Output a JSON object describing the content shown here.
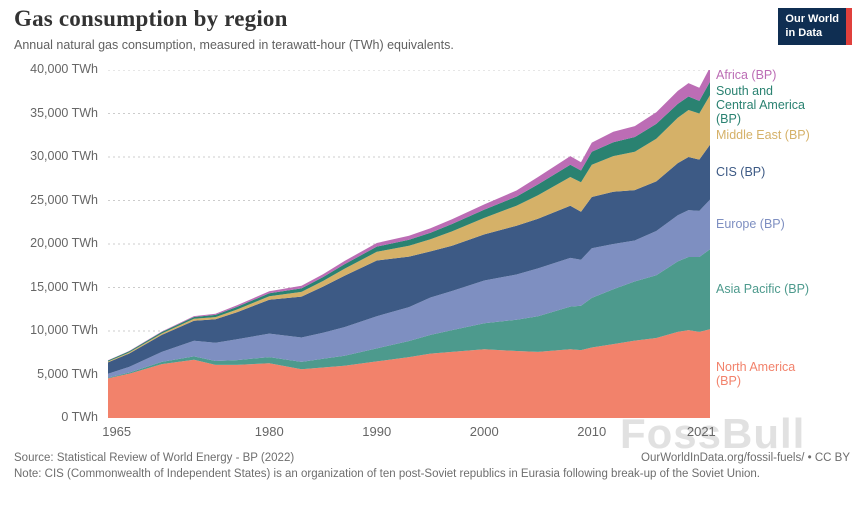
{
  "header": {
    "title": "Gas consumption by region",
    "subtitle": "Annual natural gas consumption, measured in terawatt-hour (TWh) equivalents.",
    "logo": {
      "line1": "Our World",
      "line2": "in Data",
      "bg": "#0F2E52",
      "accent": "#E0403C"
    }
  },
  "chart_data": {
    "type": "area",
    "stacked": true,
    "title": "Gas consumption by region",
    "xlabel": "",
    "ylabel": "TWh",
    "ylim": [
      0,
      40000
    ],
    "grid": "dotted-horizontal",
    "legend_position": "right",
    "x": [
      1965,
      1967,
      1970,
      1973,
      1975,
      1977,
      1980,
      1983,
      1985,
      1987,
      1990,
      1993,
      1995,
      1997,
      2000,
      2003,
      2005,
      2008,
      2009,
      2010,
      2012,
      2014,
      2016,
      2018,
      2019,
      2020,
      2021
    ],
    "series": [
      {
        "name": "North America (BP)",
        "color": "#F2826B",
        "values": [
          4550,
          5100,
          6200,
          6700,
          6100,
          6100,
          6300,
          5600,
          5800,
          6000,
          6500,
          7000,
          7400,
          7600,
          7900,
          7700,
          7600,
          7900,
          7800,
          8100,
          8500,
          8900,
          9200,
          9900,
          10100,
          9900,
          10200
        ]
      },
      {
        "name": "Asia Pacific (BP)",
        "color": "#4D9A8D",
        "values": [
          90,
          130,
          250,
          380,
          450,
          550,
          700,
          850,
          1000,
          1150,
          1500,
          1850,
          2150,
          2500,
          3000,
          3600,
          4100,
          4900,
          5100,
          5700,
          6300,
          6800,
          7200,
          8100,
          8400,
          8600,
          9200
        ]
      },
      {
        "name": "Europe (BP)",
        "color": "#7E8FC1",
        "values": [
          450,
          650,
          1150,
          1800,
          2100,
          2400,
          2700,
          2800,
          3000,
          3300,
          3700,
          3900,
          4300,
          4500,
          4900,
          5200,
          5500,
          5600,
          5300,
          5700,
          5200,
          4700,
          5100,
          5300,
          5400,
          5300,
          5700
        ]
      },
      {
        "name": "CIS (BP)",
        "color": "#3D5A85",
        "values": [
          1300,
          1550,
          1950,
          2300,
          2700,
          3100,
          3900,
          4700,
          5300,
          5900,
          6400,
          5800,
          5300,
          5200,
          5300,
          5600,
          5700,
          6000,
          5500,
          5900,
          6000,
          5800,
          5700,
          6000,
          6100,
          5900,
          6300
        ]
      },
      {
        "name": "Middle East (BP)",
        "color": "#D5B168",
        "values": [
          100,
          120,
          160,
          220,
          250,
          320,
          400,
          550,
          650,
          800,
          1000,
          1250,
          1400,
          1650,
          1900,
          2300,
          2700,
          3300,
          3400,
          3700,
          4100,
          4400,
          4900,
          5200,
          5400,
          5300,
          5700
        ]
      },
      {
        "name": "South and Central America (BP)",
        "color": "#2A8271",
        "values": [
          120,
          140,
          170,
          210,
          250,
          300,
          350,
          400,
          450,
          520,
          600,
          680,
          750,
          850,
          950,
          1050,
          1250,
          1400,
          1350,
          1500,
          1600,
          1700,
          1700,
          1600,
          1550,
          1450,
          1550
        ]
      },
      {
        "name": "Africa (BP)",
        "color": "#BC6DB5",
        "values": [
          20,
          30,
          60,
          100,
          130,
          180,
          230,
          290,
          330,
          380,
          420,
          460,
          500,
          550,
          600,
          700,
          850,
          1000,
          950,
          1050,
          1200,
          1250,
          1350,
          1500,
          1550,
          1500,
          1650
        ]
      }
    ],
    "yticks": [
      0,
      5000,
      10000,
      15000,
      20000,
      25000,
      30000,
      35000,
      40000
    ],
    "ytick_labels": [
      "0 TWh",
      "5,000 TWh",
      "10,000 TWh",
      "15,000 TWh",
      "20,000 TWh",
      "25,000 TWh",
      "30,000 TWh",
      "35,000 TWh",
      "40,000 TWh"
    ],
    "xticks": [
      1965,
      1980,
      1990,
      2000,
      2010,
      2021
    ],
    "xtick_labels": [
      "1965",
      "1980",
      "1990",
      "2000",
      "2010",
      "2021"
    ]
  },
  "legend": [
    {
      "label": "Africa (BP)",
      "color": "#BC6DB5"
    },
    {
      "label": "South and\nCentral America\n(BP)",
      "color": "#2A8271"
    },
    {
      "label": "Middle East (BP)",
      "color": "#D5B168"
    },
    {
      "label": "CIS (BP)",
      "color": "#3D5A85"
    },
    {
      "label": "Europe (BP)",
      "color": "#7E8FC1"
    },
    {
      "label": "Asia Pacific (BP)",
      "color": "#4D9A8D"
    },
    {
      "label": "North America\n(BP)",
      "color": "#F2826B"
    }
  ],
  "footer": {
    "source": "Source: Statistical Review of World Energy - BP (2022)",
    "link": "OurWorldInData.org/fossil-fuels/ • CC BY",
    "note": "Note: CIS (Commonwealth of Independent States) is an organization of ten post-Soviet republics in Eurasia following break-up of the Soviet Union."
  },
  "watermark": "FossBull"
}
